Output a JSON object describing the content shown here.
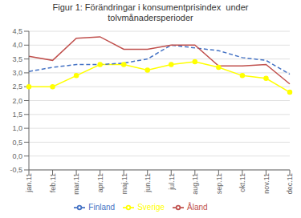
{
  "chart_data": {
    "type": "line",
    "title": "Figur 1: Förändringar i konsumentprisindex  under\ntolvmånadersperioder",
    "categories": [
      "jan.11",
      "feb.11",
      "mar.11",
      "apr.11",
      "maj.11",
      "jun.11",
      "jul.11",
      "aug.11",
      "sep.11",
      "okt.11",
      "nov.11",
      "dec.11"
    ],
    "series": [
      {
        "name": "Sverige",
        "color": "#ffff00",
        "marker": "circle",
        "line_style": "solid",
        "values": [
          2.5,
          2.5,
          2.9,
          3.3,
          3.3,
          3.1,
          3.3,
          3.4,
          3.2,
          2.9,
          2.8,
          2.3
        ]
      },
      {
        "name": "Finland",
        "color": "#4472c4",
        "marker": "none",
        "line_style": "dashed",
        "values": [
          3.05,
          3.2,
          3.3,
          3.3,
          3.35,
          3.5,
          4.0,
          3.9,
          3.8,
          3.55,
          3.45,
          2.95
        ]
      },
      {
        "name": "Åland",
        "color": "#c0504d",
        "marker": "none",
        "line_style": "solid",
        "values": [
          3.6,
          3.45,
          4.25,
          4.3,
          3.85,
          3.85,
          4.0,
          4.0,
          3.25,
          3.25,
          3.3,
          2.6
        ]
      }
    ],
    "ylim": [
      -0.5,
      4.5
    ],
    "yticks": [
      {
        "value": -0.5,
        "label": "-0,5"
      },
      {
        "value": 0.0,
        "label": "0,0"
      },
      {
        "value": 0.5,
        "label": "0,5"
      },
      {
        "value": 1.0,
        "label": "1,0"
      },
      {
        "value": 1.5,
        "label": "1,5"
      },
      {
        "value": 2.0,
        "label": "2,0"
      },
      {
        "value": 2.5,
        "label": "2,5"
      },
      {
        "value": 3.0,
        "label": "3,0"
      },
      {
        "value": 3.5,
        "label": "3,5"
      },
      {
        "value": 4.0,
        "label": "4,0"
      },
      {
        "value": 4.5,
        "label": "4,5"
      }
    ],
    "grid": true,
    "legend": "bottom"
  }
}
